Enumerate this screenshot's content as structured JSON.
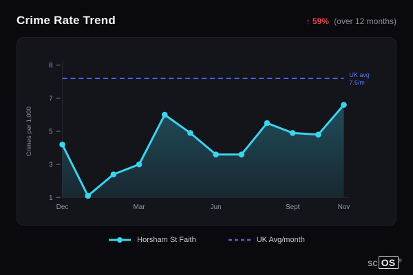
{
  "header": {
    "title": "Crime Rate Trend",
    "trend_arrow": "↑",
    "trend_value": "59%",
    "trend_caption": "(over 12 months)"
  },
  "chart_data": {
    "type": "line",
    "title": "Crime Rate Trend",
    "xlabel": "",
    "ylabel": "Crimes per 1,000",
    "y_ticks": [
      1,
      3,
      5,
      7,
      8
    ],
    "x_ticks": [
      {
        "index": 0,
        "label": "Dec"
      },
      {
        "index": 3,
        "label": "Mar"
      },
      {
        "index": 6,
        "label": "Jun"
      },
      {
        "index": 9,
        "label": "Sept"
      },
      {
        "index": 11,
        "label": "Nov"
      }
    ],
    "n_points": 12,
    "series": [
      {
        "name": "Horsham St Faith",
        "type": "line-area",
        "color": "#3bd4ee",
        "values": [
          4.2,
          1.1,
          2.4,
          3.0,
          6.0,
          4.9,
          3.6,
          3.6,
          5.5,
          4.9,
          4.8,
          6.6
        ]
      }
    ],
    "reference_line": {
      "name": "UK Avg/month",
      "value": 7.6,
      "color": "#4a63e8",
      "label_color": "#5b78f5",
      "label_line1": "UK avg",
      "label_line2": "7.6/m"
    },
    "legend": [
      {
        "label": "Horsham St Faith",
        "color": "#3bd4ee",
        "style": "solid"
      },
      {
        "label": "UK Avg/month",
        "color": "#4a63e8",
        "style": "dashed"
      }
    ],
    "grid": false,
    "legend_position": "bottom"
  },
  "footer": {
    "logo_prefix": "sc",
    "logo_box": "OS",
    "logo_reg": "®"
  }
}
